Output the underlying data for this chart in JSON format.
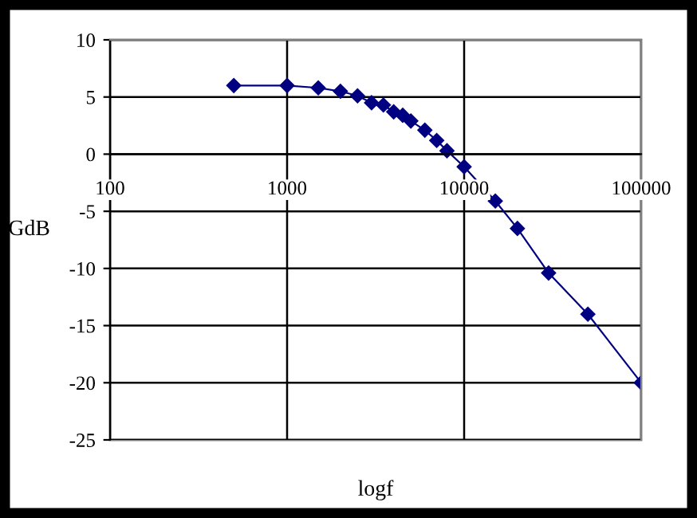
{
  "chart_data": {
    "type": "line",
    "xlabel": "logf",
    "ylabel": "GdB",
    "log": "x",
    "x": [
      500,
      1000,
      1500,
      2000,
      2500,
      3000,
      3500,
      4000,
      4500,
      5000,
      6000,
      7000,
      8000,
      10000,
      15000,
      20000,
      30000,
      50000,
      100000
    ],
    "series": [
      {
        "color": "#000080",
        "values": [
          6.0,
          6.0,
          5.8,
          5.5,
          5.1,
          4.5,
          4.3,
          3.7,
          3.4,
          2.9,
          2.1,
          1.2,
          0.3,
          -1.1,
          -4.1,
          -6.5,
          -10.4,
          -14.0,
          -20.0
        ]
      }
    ],
    "xlim": [
      100,
      100000
    ],
    "xticks": [
      100,
      1000,
      10000,
      100000
    ],
    "ylim": [
      -25,
      10
    ],
    "yticks": [
      -25,
      -20,
      -15,
      -10,
      -5,
      0,
      5,
      10
    ],
    "grid": true,
    "marker": "diamond",
    "line_style": "solid",
    "legend": false
  }
}
